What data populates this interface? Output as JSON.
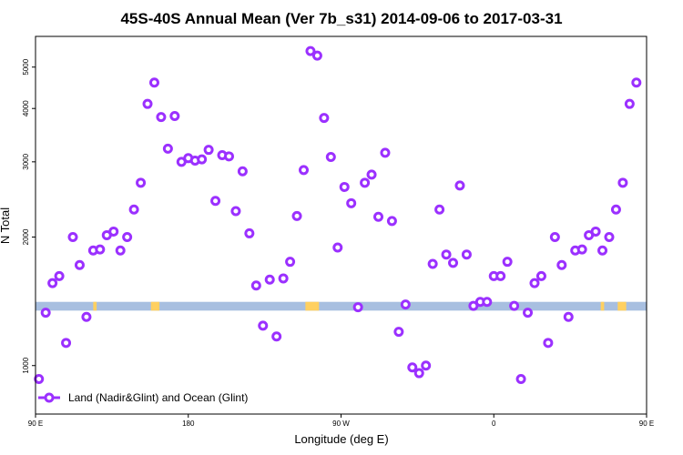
{
  "chart_data": {
    "type": "scatter",
    "title": "45S-40S Annual Mean (Ver 7b_s31)   2014-09-06 to 2017-03-31",
    "xlabel": "Longitude (deg E)",
    "ylabel": "N Total",
    "xlim": [
      90,
      450
    ],
    "ylim": [
      770,
      5900
    ],
    "y_scale": "log",
    "grid": false,
    "x_ticks": [
      {
        "value": 90,
        "label": "90 E"
      },
      {
        "value": 180,
        "label": "180"
      },
      {
        "value": 270,
        "label": "90 W"
      },
      {
        "value": 360,
        "label": "0"
      },
      {
        "value": 450,
        "label": "90 E"
      },
      {
        "value": 540,
        "label": "180"
      }
    ],
    "y_ticks": [
      {
        "value": 1000,
        "label": "1000"
      },
      {
        "value": 2000,
        "label": "2000"
      },
      {
        "value": 3000,
        "label": "3000"
      },
      {
        "value": 4000,
        "label": "4000"
      },
      {
        "value": 5000,
        "label": "5000"
      }
    ],
    "land_mask_band": {
      "y_low": 1345,
      "y_high": 1410
    },
    "legend": {
      "position": "bottom-left"
    },
    "colors": {
      "series": "#9b30ff",
      "ocean_band": "#a8bfe0",
      "land_band": "#ffd060",
      "axis": "#000000"
    },
    "series": [
      {
        "name": "Land (Nadir&Glint) and Ocean (Glint)",
        "points": [
          [
            92,
            930
          ],
          [
            96,
            1330
          ],
          [
            100,
            1560
          ],
          [
            104,
            1620
          ],
          [
            108,
            1130
          ],
          [
            112,
            2000
          ],
          [
            116,
            1720
          ],
          [
            120,
            1300
          ],
          [
            124,
            1860
          ],
          [
            128,
            1870
          ],
          [
            132,
            2020
          ],
          [
            136,
            2060
          ],
          [
            140,
            1860
          ],
          [
            144,
            2000
          ],
          [
            148,
            2320
          ],
          [
            152,
            2680
          ],
          [
            156,
            4100
          ],
          [
            160,
            4600
          ],
          [
            164,
            3820
          ],
          [
            168,
            3220
          ],
          [
            172,
            3840
          ],
          [
            176,
            3000
          ],
          [
            180,
            3060
          ],
          [
            184,
            3020
          ],
          [
            188,
            3040
          ],
          [
            192,
            3200
          ],
          [
            196,
            2430
          ],
          [
            200,
            3110
          ],
          [
            204,
            3090
          ],
          [
            208,
            2300
          ],
          [
            212,
            2850
          ],
          [
            216,
            2040
          ],
          [
            220,
            1540
          ],
          [
            224,
            1240
          ],
          [
            228,
            1590
          ],
          [
            232,
            1170
          ],
          [
            236,
            1600
          ],
          [
            240,
            1750
          ],
          [
            244,
            2240
          ],
          [
            248,
            2870
          ],
          [
            252,
            5450
          ],
          [
            256,
            5320
          ],
          [
            260,
            3800
          ],
          [
            264,
            3080
          ],
          [
            268,
            1890
          ],
          [
            272,
            2620
          ],
          [
            276,
            2400
          ],
          [
            280,
            1370
          ],
          [
            284,
            2680
          ],
          [
            288,
            2800
          ],
          [
            292,
            2230
          ],
          [
            296,
            3150
          ],
          [
            300,
            2180
          ],
          [
            304,
            1200
          ],
          [
            308,
            1390
          ],
          [
            312,
            990
          ],
          [
            316,
            960
          ],
          [
            320,
            1000
          ],
          [
            324,
            1730
          ],
          [
            328,
            2320
          ],
          [
            332,
            1820
          ],
          [
            336,
            1740
          ],
          [
            340,
            2640
          ],
          [
            344,
            1820
          ],
          [
            348,
            1380
          ],
          [
            352,
            1410
          ],
          [
            356,
            1410
          ],
          [
            360,
            1620
          ],
          [
            364,
            1620
          ],
          [
            368,
            1750
          ],
          [
            372,
            1380
          ],
          [
            376,
            930
          ],
          [
            380,
            1330
          ],
          [
            384,
            1560
          ],
          [
            388,
            1620
          ],
          [
            392,
            1130
          ],
          [
            396,
            2000
          ],
          [
            400,
            1720
          ],
          [
            404,
            1300
          ],
          [
            408,
            1860
          ],
          [
            412,
            1870
          ],
          [
            416,
            2020
          ],
          [
            420,
            2060
          ],
          [
            424,
            1860
          ],
          [
            428,
            2000
          ],
          [
            432,
            2320
          ],
          [
            436,
            2680
          ],
          [
            440,
            4100
          ],
          [
            444,
            4600
          ]
        ]
      }
    ]
  }
}
